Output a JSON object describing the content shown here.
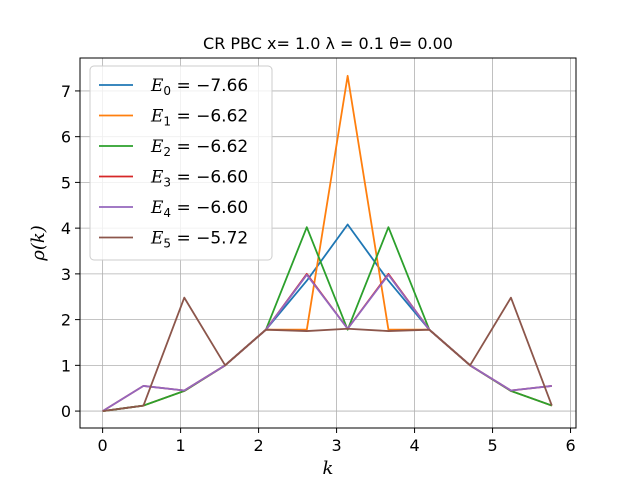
{
  "chart_data": {
    "type": "line",
    "title": "CR PBC x= 1.0 λ = 0.1 θ= 0.00",
    "xlabel": "k",
    "ylabel": "ρ(k)",
    "xlim": [
      -0.29,
      6.07
    ],
    "ylim": [
      -0.37,
      7.72
    ],
    "xticks": [
      0,
      1,
      2,
      3,
      4,
      5,
      6
    ],
    "yticks": [
      0,
      1,
      2,
      3,
      4,
      5,
      6,
      7
    ],
    "grid": true,
    "legend_position": "top-left",
    "x": [
      0.0,
      0.524,
      1.047,
      1.571,
      2.094,
      2.618,
      3.142,
      3.665,
      4.189,
      4.712,
      5.236,
      5.76
    ],
    "series": [
      {
        "name": "E_0 = -7.66",
        "sub": "0",
        "energy": "= −7.66",
        "color": "#1f77b4",
        "values": [
          0.0,
          0.12,
          0.44,
          1.0,
          1.78,
          2.85,
          4.08,
          2.85,
          1.78,
          1.0,
          0.44,
          0.12
        ]
      },
      {
        "name": "E_1 = -6.62",
        "sub": "1",
        "energy": "= −6.62",
        "color": "#ff7f0e",
        "values": [
          0.0,
          0.12,
          0.44,
          1.0,
          1.78,
          1.78,
          7.33,
          1.78,
          1.78,
          1.0,
          0.44,
          0.12
        ]
      },
      {
        "name": "E_2 = -6.62",
        "sub": "2",
        "energy": "= −6.62",
        "color": "#2ca02c",
        "values": [
          0.0,
          0.12,
          0.44,
          1.0,
          1.78,
          4.02,
          1.78,
          4.02,
          1.78,
          1.0,
          0.44,
          0.12
        ]
      },
      {
        "name": "E_3 = -6.60",
        "sub": "3",
        "energy": "= −6.60",
        "color": "#d62728",
        "values": [
          0.0,
          0.55,
          0.45,
          1.0,
          1.78,
          3.0,
          1.8,
          3.0,
          1.78,
          1.0,
          0.45,
          0.55
        ]
      },
      {
        "name": "E_4 = -6.60",
        "sub": "4",
        "energy": "= −6.60",
        "color": "#9467bd",
        "values": [
          0.0,
          0.55,
          0.45,
          1.0,
          1.78,
          2.98,
          1.8,
          2.98,
          1.78,
          1.0,
          0.45,
          0.55
        ]
      },
      {
        "name": "E_5 = -5.72",
        "sub": "5",
        "energy": "= −5.72",
        "color": "#8c564b",
        "values": [
          0.0,
          0.12,
          2.48,
          1.0,
          1.78,
          1.75,
          1.8,
          1.75,
          1.78,
          1.0,
          2.48,
          0.12
        ]
      }
    ]
  }
}
